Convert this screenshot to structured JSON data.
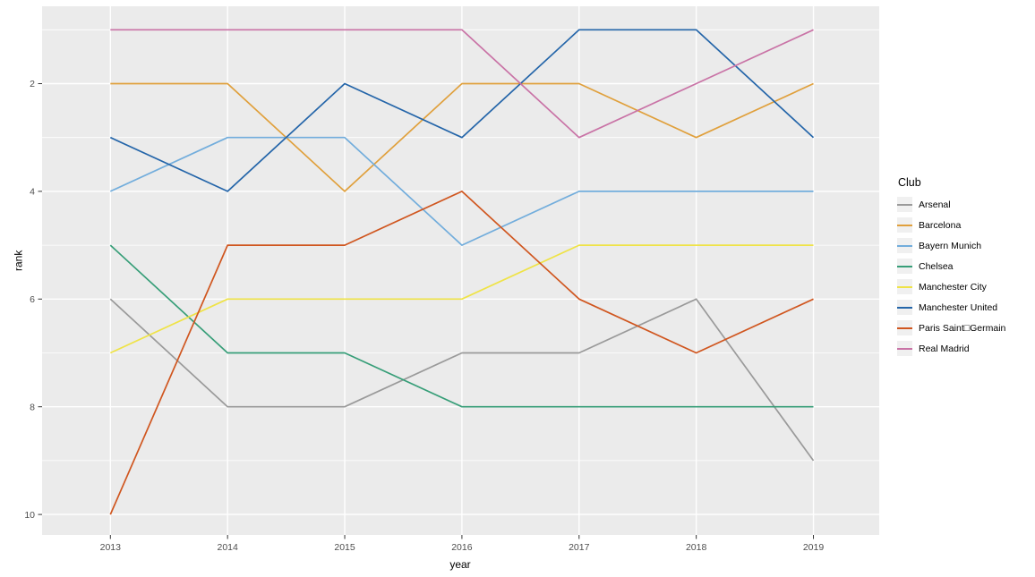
{
  "style": {
    "page_background": "#FFFFFF",
    "panel_background": "#EBEBEB",
    "grid_color": "#FFFFFF",
    "tick_color": "#333333",
    "tick_label_color": "#4D4D4D",
    "axis_title_color": "#000000",
    "legend_key_background": "#F0F0F0"
  },
  "chart_data": {
    "type": "line",
    "title": "",
    "xlabel": "year",
    "ylabel": "rank",
    "x": [
      2013,
      2014,
      2015,
      2016,
      2017,
      2018,
      2019
    ],
    "x_tick_labels": [
      "2013",
      "2014",
      "2015",
      "2016",
      "2017",
      "2018",
      "2019"
    ],
    "y_ticks": [
      2,
      4,
      6,
      8,
      10
    ],
    "y_tick_labels": [
      "2",
      "4",
      "6",
      "8",
      "10"
    ],
    "y_axis_reversed": true,
    "y_rank_range": [
      1,
      10
    ],
    "grid": "on",
    "legend_title": "Club",
    "legend_position": "right",
    "series": [
      {
        "name": "Arsenal",
        "color": "#9A9A9A",
        "values": [
          6,
          8,
          8,
          7,
          7,
          6,
          9
        ]
      },
      {
        "name": "Barcelona",
        "color": "#E0A03C",
        "values": [
          2,
          2,
          4,
          2,
          2,
          3,
          2
        ]
      },
      {
        "name": "Bayern Munich",
        "color": "#72ADDC",
        "values": [
          4,
          3,
          3,
          5,
          4,
          4,
          4
        ]
      },
      {
        "name": "Chelsea",
        "color": "#379E78",
        "values": [
          5,
          7,
          7,
          8,
          8,
          8,
          8
        ]
      },
      {
        "name": "Manchester City",
        "color": "#EFE347",
        "values": [
          7,
          6,
          6,
          6,
          5,
          5,
          5
        ]
      },
      {
        "name": "Manchester United",
        "color": "#2465A9",
        "values": [
          3,
          4,
          2,
          3,
          1,
          1,
          3
        ]
      },
      {
        "name": "Paris Saint□Germain",
        "color": "#D0561F",
        "values": [
          10,
          5,
          5,
          4,
          6,
          7,
          6
        ]
      },
      {
        "name": "Real Madrid",
        "color": "#C973A6",
        "values": [
          1,
          1,
          1,
          1,
          3,
          2,
          1
        ]
      }
    ]
  }
}
